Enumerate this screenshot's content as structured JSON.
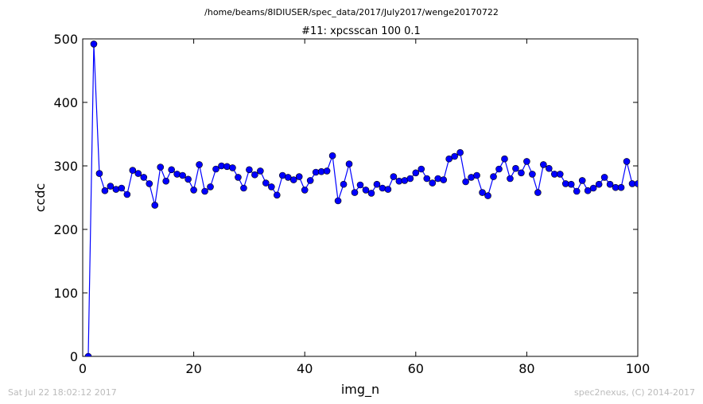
{
  "figure": {
    "suptitle": "/home/beams/8IDIUSER/spec_data/2017/July2017/wenge20170722",
    "footer_left": "Sat Jul 22 18:02:12 2017",
    "footer_right": "spec2nexus, (C) 2014-2017"
  },
  "chart_data": {
    "type": "line",
    "title": "#11: xpcsscan 100 0.1",
    "xlabel": "img_n",
    "ylabel": "ccdc",
    "xlim": [
      0,
      100
    ],
    "ylim": [
      0,
      500
    ],
    "xticks": [
      0,
      20,
      40,
      60,
      80,
      100
    ],
    "yticks": [
      0,
      100,
      200,
      300,
      400,
      500
    ],
    "grid": false,
    "line_color": "#0000ff",
    "marker": "circle",
    "series": [
      {
        "x": [
          1,
          2,
          3,
          4,
          5,
          6,
          7,
          8,
          9,
          10,
          11,
          12,
          13,
          14,
          15,
          16,
          17,
          18,
          19,
          20,
          21,
          22,
          23,
          24,
          25,
          26,
          27,
          28,
          29,
          30,
          31,
          32,
          33,
          34,
          35,
          36,
          37,
          38,
          39,
          40,
          41,
          42,
          43,
          44,
          45,
          46,
          47,
          48,
          49,
          50,
          51,
          52,
          53,
          54,
          55,
          56,
          57,
          58,
          59,
          60,
          61,
          62,
          63,
          64,
          65,
          66,
          67,
          68,
          69,
          70,
          71,
          72,
          73,
          74,
          75,
          76,
          77,
          78,
          79,
          80,
          81,
          82,
          83,
          84,
          85,
          86,
          87,
          88,
          89,
          90,
          91,
          92,
          93,
          94,
          95,
          96,
          97,
          98,
          99,
          100
        ],
        "y": [
          0,
          492,
          288,
          261,
          268,
          263,
          265,
          255,
          293,
          288,
          282,
          272,
          238,
          298,
          276,
          294,
          287,
          285,
          279,
          262,
          302,
          260,
          267,
          295,
          300,
          299,
          297,
          282,
          265,
          294,
          286,
          292,
          273,
          267,
          254,
          285,
          282,
          278,
          283,
          262,
          277,
          290,
          291,
          292,
          316,
          245,
          271,
          303,
          258,
          270,
          262,
          257,
          271,
          265,
          263,
          283,
          276,
          277,
          280,
          289,
          295,
          280,
          273,
          280,
          278,
          311,
          315,
          321,
          275,
          282,
          285,
          258,
          253,
          283,
          295,
          311,
          280,
          296,
          289,
          307,
          287,
          258,
          302,
          296,
          287,
          287,
          272,
          271,
          260,
          277,
          261,
          265,
          271,
          282,
          271,
          266,
          266,
          307,
          272,
          272
        ]
      }
    ]
  }
}
